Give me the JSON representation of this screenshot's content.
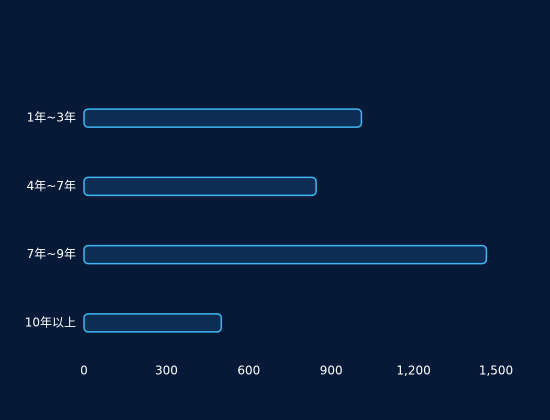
{
  "chart_data": {
    "type": "hbar",
    "categories": [
      "1年~3年",
      "4年~7年",
      "7年~9年",
      "10年以上"
    ],
    "values": [
      1010,
      845,
      1465,
      500
    ],
    "color": "#0d2d55",
    "edge_color": "#3fb6f2",
    "xlim": [
      0,
      1500
    ],
    "xticks": [
      0,
      300,
      600,
      900,
      {
        "value": 1200,
        "label": "1,200"
      },
      {
        "value": 1500,
        "label": "1,500"
      }
    ],
    "grid": false
  }
}
